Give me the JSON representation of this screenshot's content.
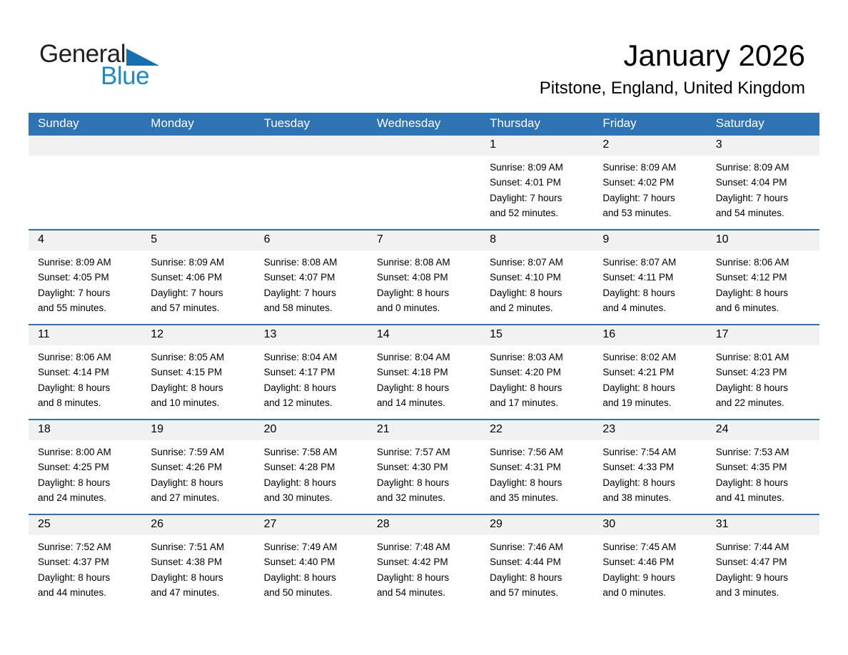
{
  "logo": {
    "part1": "General",
    "part2": "Blue"
  },
  "header": {
    "title": "January 2026",
    "subtitle": "Pitstone, England, United Kingdom"
  },
  "colors": {
    "header_bar": "#2e74b5",
    "week_divider": "#2e74b5",
    "day_number_band": "#f1f1f1",
    "logo_text_blue": "#2088c8",
    "logo_triangle_blue": "#1470b0",
    "text": "#000000"
  },
  "calendar": {
    "day_names": [
      "Sunday",
      "Monday",
      "Tuesday",
      "Wednesday",
      "Thursday",
      "Friday",
      "Saturday"
    ],
    "weeks": [
      [
        {
          "day": "",
          "sunrise": "",
          "sunset": "",
          "daylight1": "",
          "daylight2": ""
        },
        {
          "day": "",
          "sunrise": "",
          "sunset": "",
          "daylight1": "",
          "daylight2": ""
        },
        {
          "day": "",
          "sunrise": "",
          "sunset": "",
          "daylight1": "",
          "daylight2": ""
        },
        {
          "day": "",
          "sunrise": "",
          "sunset": "",
          "daylight1": "",
          "daylight2": ""
        },
        {
          "day": "1",
          "sunrise": "Sunrise: 8:09 AM",
          "sunset": "Sunset: 4:01 PM",
          "daylight1": "Daylight: 7 hours",
          "daylight2": "and 52 minutes."
        },
        {
          "day": "2",
          "sunrise": "Sunrise: 8:09 AM",
          "sunset": "Sunset: 4:02 PM",
          "daylight1": "Daylight: 7 hours",
          "daylight2": "and 53 minutes."
        },
        {
          "day": "3",
          "sunrise": "Sunrise: 8:09 AM",
          "sunset": "Sunset: 4:04 PM",
          "daylight1": "Daylight: 7 hours",
          "daylight2": "and 54 minutes."
        }
      ],
      [
        {
          "day": "4",
          "sunrise": "Sunrise: 8:09 AM",
          "sunset": "Sunset: 4:05 PM",
          "daylight1": "Daylight: 7 hours",
          "daylight2": "and 55 minutes."
        },
        {
          "day": "5",
          "sunrise": "Sunrise: 8:09 AM",
          "sunset": "Sunset: 4:06 PM",
          "daylight1": "Daylight: 7 hours",
          "daylight2": "and 57 minutes."
        },
        {
          "day": "6",
          "sunrise": "Sunrise: 8:08 AM",
          "sunset": "Sunset: 4:07 PM",
          "daylight1": "Daylight: 7 hours",
          "daylight2": "and 58 minutes."
        },
        {
          "day": "7",
          "sunrise": "Sunrise: 8:08 AM",
          "sunset": "Sunset: 4:08 PM",
          "daylight1": "Daylight: 8 hours",
          "daylight2": "and 0 minutes."
        },
        {
          "day": "8",
          "sunrise": "Sunrise: 8:07 AM",
          "sunset": "Sunset: 4:10 PM",
          "daylight1": "Daylight: 8 hours",
          "daylight2": "and 2 minutes."
        },
        {
          "day": "9",
          "sunrise": "Sunrise: 8:07 AM",
          "sunset": "Sunset: 4:11 PM",
          "daylight1": "Daylight: 8 hours",
          "daylight2": "and 4 minutes."
        },
        {
          "day": "10",
          "sunrise": "Sunrise: 8:06 AM",
          "sunset": "Sunset: 4:12 PM",
          "daylight1": "Daylight: 8 hours",
          "daylight2": "and 6 minutes."
        }
      ],
      [
        {
          "day": "11",
          "sunrise": "Sunrise: 8:06 AM",
          "sunset": "Sunset: 4:14 PM",
          "daylight1": "Daylight: 8 hours",
          "daylight2": "and 8 minutes."
        },
        {
          "day": "12",
          "sunrise": "Sunrise: 8:05 AM",
          "sunset": "Sunset: 4:15 PM",
          "daylight1": "Daylight: 8 hours",
          "daylight2": "and 10 minutes."
        },
        {
          "day": "13",
          "sunrise": "Sunrise: 8:04 AM",
          "sunset": "Sunset: 4:17 PM",
          "daylight1": "Daylight: 8 hours",
          "daylight2": "and 12 minutes."
        },
        {
          "day": "14",
          "sunrise": "Sunrise: 8:04 AM",
          "sunset": "Sunset: 4:18 PM",
          "daylight1": "Daylight: 8 hours",
          "daylight2": "and 14 minutes."
        },
        {
          "day": "15",
          "sunrise": "Sunrise: 8:03 AM",
          "sunset": "Sunset: 4:20 PM",
          "daylight1": "Daylight: 8 hours",
          "daylight2": "and 17 minutes."
        },
        {
          "day": "16",
          "sunrise": "Sunrise: 8:02 AM",
          "sunset": "Sunset: 4:21 PM",
          "daylight1": "Daylight: 8 hours",
          "daylight2": "and 19 minutes."
        },
        {
          "day": "17",
          "sunrise": "Sunrise: 8:01 AM",
          "sunset": "Sunset: 4:23 PM",
          "daylight1": "Daylight: 8 hours",
          "daylight2": "and 22 minutes."
        }
      ],
      [
        {
          "day": "18",
          "sunrise": "Sunrise: 8:00 AM",
          "sunset": "Sunset: 4:25 PM",
          "daylight1": "Daylight: 8 hours",
          "daylight2": "and 24 minutes."
        },
        {
          "day": "19",
          "sunrise": "Sunrise: 7:59 AM",
          "sunset": "Sunset: 4:26 PM",
          "daylight1": "Daylight: 8 hours",
          "daylight2": "and 27 minutes."
        },
        {
          "day": "20",
          "sunrise": "Sunrise: 7:58 AM",
          "sunset": "Sunset: 4:28 PM",
          "daylight1": "Daylight: 8 hours",
          "daylight2": "and 30 minutes."
        },
        {
          "day": "21",
          "sunrise": "Sunrise: 7:57 AM",
          "sunset": "Sunset: 4:30 PM",
          "daylight1": "Daylight: 8 hours",
          "daylight2": "and 32 minutes."
        },
        {
          "day": "22",
          "sunrise": "Sunrise: 7:56 AM",
          "sunset": "Sunset: 4:31 PM",
          "daylight1": "Daylight: 8 hours",
          "daylight2": "and 35 minutes."
        },
        {
          "day": "23",
          "sunrise": "Sunrise: 7:54 AM",
          "sunset": "Sunset: 4:33 PM",
          "daylight1": "Daylight: 8 hours",
          "daylight2": "and 38 minutes."
        },
        {
          "day": "24",
          "sunrise": "Sunrise: 7:53 AM",
          "sunset": "Sunset: 4:35 PM",
          "daylight1": "Daylight: 8 hours",
          "daylight2": "and 41 minutes."
        }
      ],
      [
        {
          "day": "25",
          "sunrise": "Sunrise: 7:52 AM",
          "sunset": "Sunset: 4:37 PM",
          "daylight1": "Daylight: 8 hours",
          "daylight2": "and 44 minutes."
        },
        {
          "day": "26",
          "sunrise": "Sunrise: 7:51 AM",
          "sunset": "Sunset: 4:38 PM",
          "daylight1": "Daylight: 8 hours",
          "daylight2": "and 47 minutes."
        },
        {
          "day": "27",
          "sunrise": "Sunrise: 7:49 AM",
          "sunset": "Sunset: 4:40 PM",
          "daylight1": "Daylight: 8 hours",
          "daylight2": "and 50 minutes."
        },
        {
          "day": "28",
          "sunrise": "Sunrise: 7:48 AM",
          "sunset": "Sunset: 4:42 PM",
          "daylight1": "Daylight: 8 hours",
          "daylight2": "and 54 minutes."
        },
        {
          "day": "29",
          "sunrise": "Sunrise: 7:46 AM",
          "sunset": "Sunset: 4:44 PM",
          "daylight1": "Daylight: 8 hours",
          "daylight2": "and 57 minutes."
        },
        {
          "day": "30",
          "sunrise": "Sunrise: 7:45 AM",
          "sunset": "Sunset: 4:46 PM",
          "daylight1": "Daylight: 9 hours",
          "daylight2": "and 0 minutes."
        },
        {
          "day": "31",
          "sunrise": "Sunrise: 7:44 AM",
          "sunset": "Sunset: 4:47 PM",
          "daylight1": "Daylight: 9 hours",
          "daylight2": "and 3 minutes."
        }
      ]
    ]
  }
}
